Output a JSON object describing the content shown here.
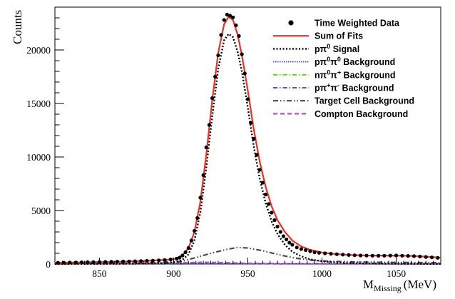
{
  "chart_data": {
    "type": "line",
    "xlabel": "M",
    "xlabel_sub": "Missing",
    "xlabel_unit": "(MeV)",
    "ylabel": "Counts",
    "xlim": [
      820,
      1080
    ],
    "ylim": [
      0,
      24000
    ],
    "x_ticks": [
      850,
      900,
      950,
      1000,
      1050
    ],
    "x_tick_labels": [
      "850",
      "900",
      "950",
      "1000",
      "1050"
    ],
    "y_ticks": [
      0,
      5000,
      10000,
      15000,
      20000
    ],
    "y_tick_labels": [
      "0",
      "5000",
      "10000",
      "15000",
      "20000"
    ],
    "grid": false,
    "legend_position": "top-right",
    "legend": [
      {
        "key": "data",
        "label_parts": [
          {
            "t": "Time Weighted Data"
          }
        ],
        "style": "marker",
        "color": "#000000"
      },
      {
        "key": "sum",
        "label_parts": [
          {
            "t": "Sum of Fits"
          }
        ],
        "style": "solid",
        "color": "#e8322a"
      },
      {
        "key": "signal",
        "label_parts": [
          {
            "t": "pπ"
          },
          {
            "t": "0",
            "sup": true
          },
          {
            "t": " Signal"
          }
        ],
        "style": "dotted",
        "color": "#000000"
      },
      {
        "key": "ppi0pi0",
        "label_parts": [
          {
            "t": "pπ"
          },
          {
            "t": "0",
            "sup": true
          },
          {
            "t": "π"
          },
          {
            "t": "0",
            "sup": true
          },
          {
            "t": " Background"
          }
        ],
        "style": "dotted-fine",
        "color": "#3838c8"
      },
      {
        "key": "npi0pip",
        "label_parts": [
          {
            "t": "nπ"
          },
          {
            "t": "0",
            "sup": true
          },
          {
            "t": "π"
          },
          {
            "t": "+",
            "sup": true
          },
          {
            "t": " Background"
          }
        ],
        "style": "dashdot",
        "color": "#66cc1a"
      },
      {
        "key": "ppippim",
        "label_parts": [
          {
            "t": "pπ"
          },
          {
            "t": "+",
            "sup": true
          },
          {
            "t": "π"
          },
          {
            "t": "-",
            "sup": true
          },
          {
            "t": " Background"
          }
        ],
        "style": "dashdot",
        "color": "#2b4da8"
      },
      {
        "key": "target",
        "label_parts": [
          {
            "t": "Target Cell Background"
          }
        ],
        "style": "dashdotdot",
        "color": "#4a4a4a"
      },
      {
        "key": "compton",
        "label_parts": [
          {
            "t": "Compton Background"
          }
        ],
        "style": "dashed",
        "color": "#b44ad6"
      }
    ],
    "series": [
      {
        "key": "data",
        "x": [
          822,
          826,
          830,
          834,
          838,
          842,
          846,
          850,
          854,
          858,
          862,
          866,
          870,
          874,
          878,
          882,
          886,
          890,
          894,
          898,
          902,
          904,
          906,
          908,
          910,
          912,
          914,
          916,
          918,
          920,
          922,
          924,
          926,
          928,
          930,
          932,
          934,
          936,
          938,
          940,
          942,
          944,
          946,
          948,
          950,
          952,
          954,
          956,
          958,
          960,
          962,
          964,
          966,
          968,
          970,
          972,
          974,
          976,
          978,
          980,
          983,
          986,
          989,
          992,
          995,
          998,
          1002,
          1006,
          1010,
          1014,
          1018,
          1022,
          1026,
          1030,
          1034,
          1038,
          1042,
          1046,
          1050,
          1054,
          1058,
          1062,
          1066,
          1070,
          1074,
          1078
        ],
        "y": [
          120,
          130,
          140,
          150,
          160,
          170,
          180,
          190,
          200,
          210,
          230,
          240,
          250,
          260,
          280,
          300,
          320,
          350,
          380,
          430,
          500,
          600,
          800,
          1100,
          1500,
          2200,
          3100,
          4300,
          6200,
          8300,
          10900,
          13000,
          15500,
          17500,
          19500,
          21400,
          22800,
          23300,
          23200,
          23050,
          22300,
          21300,
          19600,
          17800,
          15400,
          13200,
          11700,
          10200,
          8800,
          7600,
          6500,
          5600,
          4800,
          4100,
          3500,
          3000,
          2600,
          2300,
          2000,
          1800,
          1550,
          1400,
          1300,
          1200,
          1100,
          1050,
          1000,
          960,
          920,
          880,
          850,
          820,
          800,
          790,
          780,
          770,
          780,
          790,
          800,
          780,
          760,
          740,
          700,
          660,
          620,
          580
        ]
      },
      {
        "key": "sum",
        "x": [
          820,
          840,
          860,
          880,
          895,
          902,
          906,
          910,
          914,
          918,
          922,
          926,
          930,
          934,
          937,
          940,
          943,
          946,
          950,
          954,
          958,
          962,
          966,
          970,
          975,
          980,
          986,
          992,
          1000,
          1010,
          1020,
          1030,
          1040,
          1050,
          1060,
          1070,
          1080
        ],
        "y": [
          130,
          160,
          210,
          290,
          390,
          520,
          820,
          1500,
          3000,
          5800,
          10200,
          15300,
          19700,
          22400,
          23100,
          22800,
          21500,
          19500,
          16200,
          12600,
          9600,
          7200,
          5400,
          4100,
          3000,
          2200,
          1650,
          1330,
          1080,
          920,
          840,
          800,
          790,
          790,
          760,
          690,
          600
        ]
      },
      {
        "key": "signal",
        "x": [
          820,
          860,
          895,
          902,
          906,
          910,
          914,
          918,
          922,
          926,
          930,
          934,
          937,
          940,
          943,
          946,
          950,
          954,
          958,
          962,
          966,
          970,
          975,
          980,
          986,
          992,
          1000,
          1010,
          1020,
          1040,
          1060,
          1080
        ],
        "y": [
          10,
          20,
          80,
          200,
          400,
          900,
          2200,
          4800,
          9000,
          13800,
          18200,
          20900,
          21500,
          21200,
          19900,
          18000,
          14600,
          11000,
          8000,
          5700,
          4000,
          2800,
          1800,
          1150,
          720,
          450,
          260,
          140,
          80,
          40,
          20,
          10
        ]
      },
      {
        "key": "target",
        "x": [
          820,
          860,
          890,
          905,
          915,
          925,
          935,
          943,
          950,
          960,
          970,
          980,
          990,
          1000,
          1020,
          1040,
          1060,
          1080
        ],
        "y": [
          40,
          60,
          120,
          250,
          600,
          1000,
          1350,
          1550,
          1500,
          1250,
          900,
          600,
          400,
          280,
          200,
          160,
          140,
          130
        ]
      },
      {
        "key": "compton",
        "x": [
          820,
          880,
          900,
          910,
          920,
          930,
          940,
          950,
          960,
          980,
          1000,
          1080
        ],
        "y": [
          40,
          60,
          90,
          130,
          160,
          140,
          100,
          70,
          50,
          30,
          20,
          10
        ]
      },
      {
        "key": "ppi0pi0",
        "x": [
          820,
          900,
          950,
          1000,
          1050,
          1080
        ],
        "y": [
          20,
          25,
          30,
          30,
          25,
          20
        ]
      },
      {
        "key": "npi0pip",
        "x": [
          820,
          900,
          950,
          1000,
          1050,
          1080
        ],
        "y": [
          15,
          20,
          25,
          25,
          20,
          15
        ]
      },
      {
        "key": "ppippim",
        "x": [
          820,
          900,
          950,
          1000,
          1050,
          1080
        ],
        "y": [
          10,
          15,
          20,
          20,
          15,
          10
        ]
      }
    ]
  }
}
